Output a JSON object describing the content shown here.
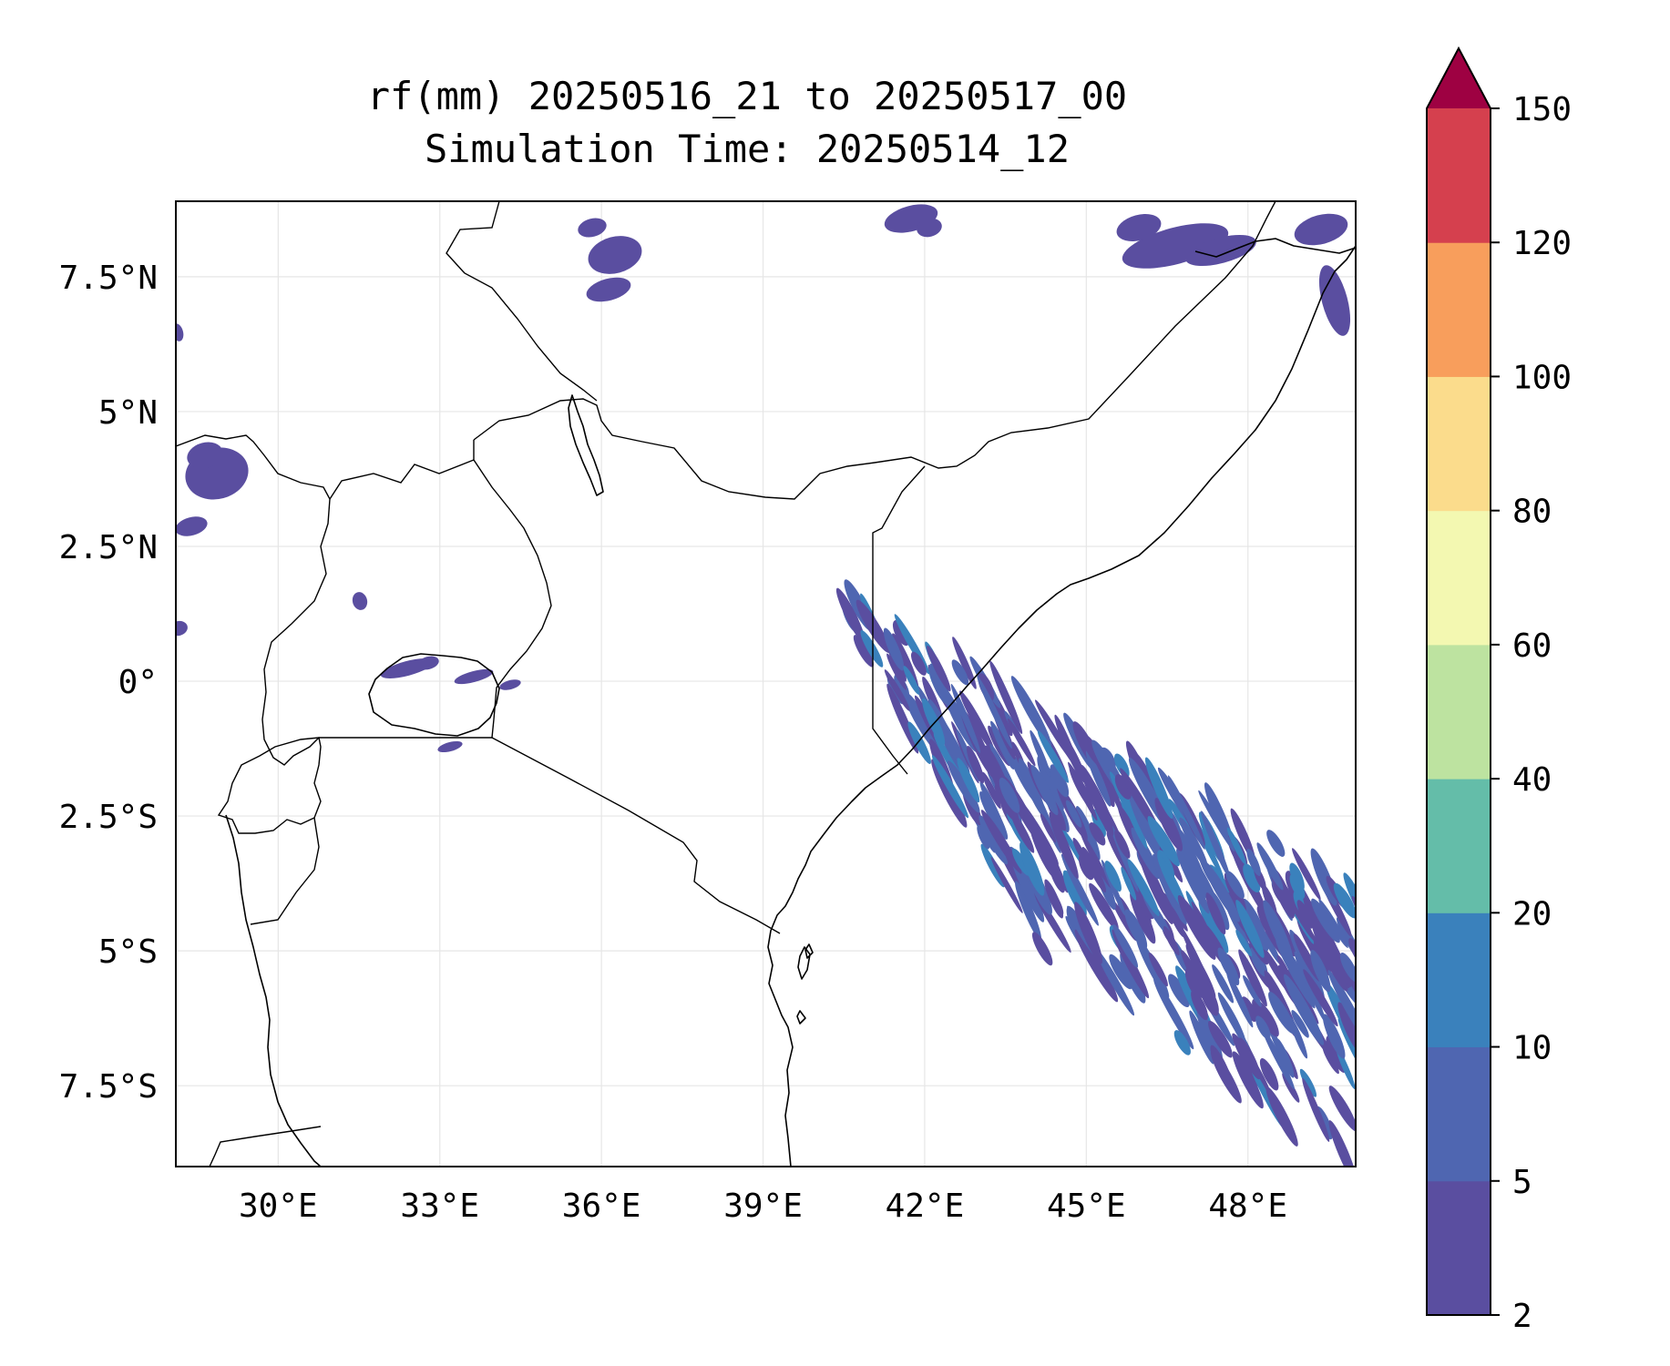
{
  "title": {
    "line1": "rf(mm) 20250516_21 to 20250517_00",
    "line2": "Simulation Time: 20250514_12"
  },
  "map": {
    "extent": {
      "lon": [
        28.1,
        50.0
      ],
      "lat": [
        -9.0,
        8.9
      ]
    },
    "lon_ticks": [
      {
        "lon": 30,
        "label": "30°E"
      },
      {
        "lon": 33,
        "label": "33°E"
      },
      {
        "lon": 36,
        "label": "36°E"
      },
      {
        "lon": 39,
        "label": "39°E"
      },
      {
        "lon": 42,
        "label": "42°E"
      },
      {
        "lon": 45,
        "label": "45°E"
      },
      {
        "lon": 48,
        "label": "48°E"
      }
    ],
    "lat_ticks": [
      {
        "lat": 7.5,
        "label": "7.5°N"
      },
      {
        "lat": 5,
        "label": "5°N"
      },
      {
        "lat": 2.5,
        "label": "2.5°N"
      },
      {
        "lat": 0,
        "label": "0°"
      },
      {
        "lat": -2.5,
        "label": "2.5°S"
      },
      {
        "lat": -5,
        "label": "5°S"
      },
      {
        "lat": -7.5,
        "label": "7.5°S"
      }
    ],
    "grid": true
  },
  "colorbar": {
    "levels": [
      "2",
      "5",
      "10",
      "20",
      "40",
      "60",
      "80",
      "100",
      "120",
      "150"
    ],
    "colors": [
      "#5a4ea0",
      "#4f66b1",
      "#3a81bc",
      "#64bda9",
      "#bde3a0",
      "#f3f8b1",
      "#fbdc8c",
      "#f89e5c",
      "#d5404e"
    ],
    "extend_color": "#9e0142"
  },
  "rain_colors": {
    "low": "#5a4ea0",
    "mid": "#4f66b1",
    "high": "#3a81bc"
  }
}
